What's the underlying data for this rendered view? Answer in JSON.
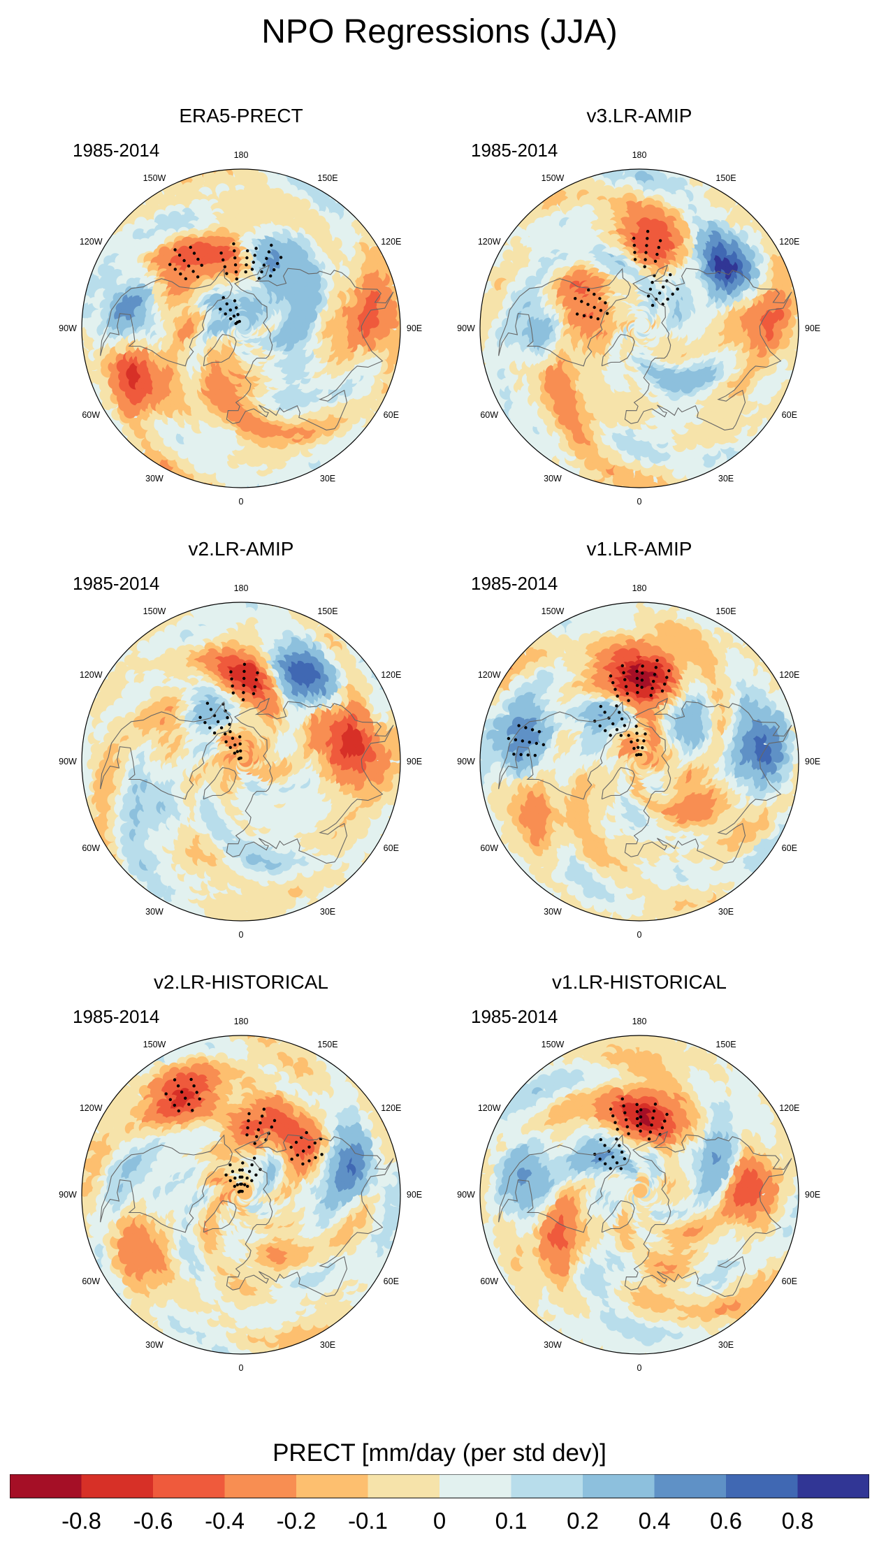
{
  "figure": {
    "title": "NPO Regressions (JJA)",
    "period": "1985-2014"
  },
  "panels": [
    {
      "title": "ERA5-PRECT",
      "period": "1985-2014"
    },
    {
      "title": "v3.LR-AMIP",
      "period": "1985-2014"
    },
    {
      "title": "v2.LR-AMIP",
      "period": "1985-2014"
    },
    {
      "title": "v1.LR-AMIP",
      "period": "1985-2014"
    },
    {
      "title": "v2.LR-HISTORICAL",
      "period": "1985-2014"
    },
    {
      "title": "v1.LR-HISTORICAL",
      "period": "1985-2014"
    }
  ],
  "longitude_labels": [
    {
      "lon": 0,
      "label": "0"
    },
    {
      "lon": 30,
      "label": "30E"
    },
    {
      "lon": 60,
      "label": "60E"
    },
    {
      "lon": 90,
      "label": "90E"
    },
    {
      "lon": 120,
      "label": "120E"
    },
    {
      "lon": 150,
      "label": "150E"
    },
    {
      "lon": 180,
      "label": "180"
    },
    {
      "lon": -150,
      "label": "150W"
    },
    {
      "lon": -120,
      "label": "120W"
    },
    {
      "lon": -90,
      "label": "90W"
    },
    {
      "lon": -60,
      "label": "60W"
    },
    {
      "lon": -30,
      "label": "30W"
    }
  ],
  "colorbar": {
    "title": "PRECT [mm/day (per std dev)]",
    "colors": [
      "#a50f26",
      "#d73027",
      "#ef5a3c",
      "#f88e52",
      "#fdbf6f",
      "#f6e3aa",
      "#e2f1ef",
      "#b8ddeb",
      "#8dc0dd",
      "#5f91c6",
      "#4068b3",
      "#313695"
    ],
    "tick_labels": [
      "-0.8",
      "-0.6",
      "-0.4",
      "-0.2",
      "-0.1",
      "0",
      "0.1",
      "0.2",
      "0.4",
      "0.6",
      "0.8"
    ]
  },
  "chart_data": [
    {
      "type": "heatmap",
      "title": "ERA5-PRECT",
      "projection": "north polar stereographic",
      "units": "mm/day (per std dev)",
      "levels": [
        -0.8,
        -0.6,
        -0.4,
        -0.2,
        -0.1,
        0,
        0.1,
        0.2,
        0.4,
        0.6,
        0.8
      ],
      "features": [
        {
          "lon": -175,
          "lat": 52,
          "value": -0.5,
          "sig": true
        },
        {
          "lon": 160,
          "lat": 50,
          "value": 0.5,
          "sig": true
        },
        {
          "lon": 95,
          "lat": 18,
          "value": -0.5,
          "sig": false
        },
        {
          "lon": -140,
          "lat": 42,
          "value": -0.3,
          "sig": true
        },
        {
          "lon": -100,
          "lat": 25,
          "value": 0.5,
          "sig": false
        },
        {
          "lon": -110,
          "lat": 48,
          "value": -0.2,
          "sig": false
        },
        {
          "lon": -65,
          "lat": 25,
          "value": -0.6,
          "sig": false
        },
        {
          "lon": -20,
          "lat": 60,
          "value": -0.3,
          "sig": false
        },
        {
          "lon": -150,
          "lat": 80,
          "value": 0.3,
          "sig": true
        },
        {
          "lon": 60,
          "lat": 60,
          "value": 0.2,
          "sig": false
        },
        {
          "lon": 120,
          "lat": 55,
          "value": 0.3,
          "sig": false
        },
        {
          "lon": 10,
          "lat": 35,
          "value": -0.15,
          "sig": false
        }
      ]
    },
    {
      "type": "heatmap",
      "title": "v3.LR-AMIP",
      "projection": "north polar stereographic",
      "units": "mm/day (per std dev)",
      "levels": [
        -0.8,
        -0.6,
        -0.4,
        -0.2,
        -0.1,
        0,
        0.1,
        0.2,
        0.4,
        0.6,
        0.8
      ],
      "features": [
        {
          "lon": 175,
          "lat": 45,
          "value": -0.7,
          "sig": true
        },
        {
          "lon": 125,
          "lat": 30,
          "value": 0.8,
          "sig": false
        },
        {
          "lon": -160,
          "lat": 55,
          "value": 0.3,
          "sig": false
        },
        {
          "lon": 95,
          "lat": 20,
          "value": -0.5,
          "sig": false
        },
        {
          "lon": -115,
          "lat": 60,
          "value": -0.5,
          "sig": true
        },
        {
          "lon": -90,
          "lat": 30,
          "value": 0.3,
          "sig": false
        },
        {
          "lon": -60,
          "lat": 40,
          "value": -0.2,
          "sig": false
        },
        {
          "lon": 30,
          "lat": 55,
          "value": 0.2,
          "sig": false
        },
        {
          "lon": 150,
          "lat": 65,
          "value": 0.2,
          "sig": true
        },
        {
          "lon": -30,
          "lat": 30,
          "value": -0.15,
          "sig": false
        }
      ]
    },
    {
      "type": "heatmap",
      "title": "v2.LR-AMIP",
      "projection": "north polar stereographic",
      "units": "mm/day (per std dev)",
      "levels": [
        -0.8,
        -0.6,
        -0.4,
        -0.2,
        -0.1,
        0,
        0.1,
        0.2,
        0.4,
        0.6,
        0.8
      ],
      "features": [
        {
          "lon": 178,
          "lat": 45,
          "value": -0.7,
          "sig": true
        },
        {
          "lon": 145,
          "lat": 30,
          "value": 0.7,
          "sig": false
        },
        {
          "lon": 95,
          "lat": 22,
          "value": -0.6,
          "sig": false
        },
        {
          "lon": 110,
          "lat": 38,
          "value": -0.3,
          "sig": false
        },
        {
          "lon": -150,
          "lat": 62,
          "value": 0.4,
          "sig": true
        },
        {
          "lon": -160,
          "lat": 82,
          "value": -0.3,
          "sig": true
        },
        {
          "lon": -120,
          "lat": 40,
          "value": -0.15,
          "sig": false
        },
        {
          "lon": -60,
          "lat": 35,
          "value": 0.2,
          "sig": false
        },
        {
          "lon": 20,
          "lat": 50,
          "value": 0.15,
          "sig": false
        }
      ]
    },
    {
      "type": "heatmap",
      "title": "v1.LR-AMIP",
      "projection": "north polar stereographic",
      "units": "mm/day (per std dev)",
      "levels": [
        -0.8,
        -0.6,
        -0.4,
        -0.2,
        -0.1,
        0,
        0.1,
        0.2,
        0.4,
        0.6,
        0.8
      ],
      "features": [
        {
          "lon": -170,
          "lat": 45,
          "value": -0.6,
          "sig": true
        },
        {
          "lon": 170,
          "lat": 42,
          "value": -0.6,
          "sig": true
        },
        {
          "lon": 95,
          "lat": 22,
          "value": 0.6,
          "sig": false
        },
        {
          "lon": -100,
          "lat": 25,
          "value": 0.5,
          "sig": true
        },
        {
          "lon": -145,
          "lat": 62,
          "value": 0.4,
          "sig": true
        },
        {
          "lon": -60,
          "lat": 35,
          "value": -0.3,
          "sig": false
        },
        {
          "lon": 60,
          "lat": 50,
          "value": -0.3,
          "sig": false
        },
        {
          "lon": 135,
          "lat": 55,
          "value": 0.3,
          "sig": false
        },
        {
          "lon": -175,
          "lat": 80,
          "value": -0.3,
          "sig": true
        }
      ]
    },
    {
      "type": "heatmap",
      "title": "v2.LR-HISTORICAL",
      "projection": "north polar stereographic",
      "units": "mm/day (per std dev)",
      "levels": [
        -0.8,
        -0.6,
        -0.4,
        -0.2,
        -0.1,
        0,
        0.1,
        0.2,
        0.4,
        0.6,
        0.8
      ],
      "features": [
        {
          "lon": -150,
          "lat": 25,
          "value": -0.6,
          "sig": true
        },
        {
          "lon": 165,
          "lat": 50,
          "value": -0.5,
          "sig": true
        },
        {
          "lon": 105,
          "lat": 30,
          "value": 0.6,
          "sig": false
        },
        {
          "lon": 125,
          "lat": 45,
          "value": -0.4,
          "sig": true
        },
        {
          "lon": 160,
          "lat": 78,
          "value": 0.3,
          "sig": true
        },
        {
          "lon": -160,
          "lat": 82,
          "value": -0.3,
          "sig": true
        },
        {
          "lon": -60,
          "lat": 30,
          "value": -0.3,
          "sig": false
        },
        {
          "lon": -95,
          "lat": 45,
          "value": 0.2,
          "sig": false
        },
        {
          "lon": 30,
          "lat": 55,
          "value": -0.15,
          "sig": false
        }
      ]
    },
    {
      "type": "heatmap",
      "title": "v1.LR-HISTORICAL",
      "projection": "north polar stereographic",
      "units": "mm/day (per std dev)",
      "levels": [
        -0.8,
        -0.6,
        -0.4,
        -0.2,
        -0.1,
        0,
        0.1,
        0.2,
        0.4,
        0.6,
        0.8
      ],
      "features": [
        {
          "lon": -170,
          "lat": 45,
          "value": -0.5,
          "sig": true
        },
        {
          "lon": 170,
          "lat": 48,
          "value": -0.5,
          "sig": true
        },
        {
          "lon": -145,
          "lat": 62,
          "value": 0.4,
          "sig": true
        },
        {
          "lon": 95,
          "lat": 30,
          "value": -0.5,
          "sig": false
        },
        {
          "lon": 115,
          "lat": 42,
          "value": 0.4,
          "sig": false
        },
        {
          "lon": -100,
          "lat": 25,
          "value": 0.4,
          "sig": false
        },
        {
          "lon": -60,
          "lat": 40,
          "value": -0.4,
          "sig": false
        },
        {
          "lon": 20,
          "lat": 50,
          "value": -0.2,
          "sig": false
        },
        {
          "lon": -20,
          "lat": 40,
          "value": 0.15,
          "sig": false
        }
      ]
    }
  ]
}
